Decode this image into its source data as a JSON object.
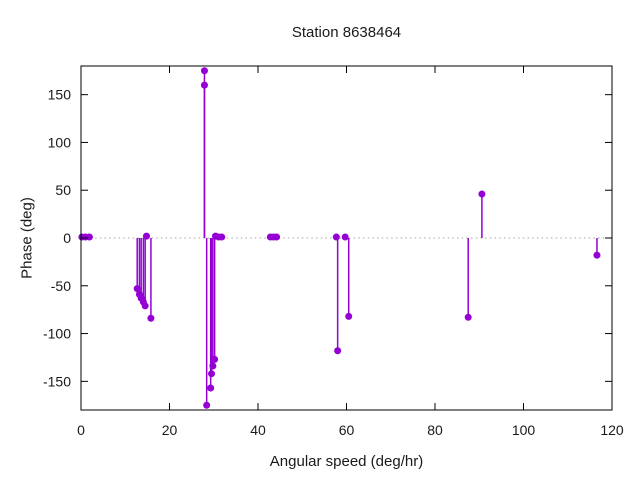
{
  "colors": {
    "accent": "#9400d3",
    "zero_line": "#a6a6a6",
    "border": "#000000",
    "text": "#1a1a1a",
    "background": "#ffffff"
  },
  "chart_data": {
    "type": "scatter",
    "style": "impulses+points",
    "title": "Station 8638464",
    "xlabel": "Angular speed (deg/hr)",
    "ylabel": "Phase (deg)",
    "xlim": [
      0,
      120
    ],
    "ylim": [
      -180,
      180
    ],
    "xticks": [
      0,
      20,
      40,
      60,
      80,
      100,
      120
    ],
    "yticks": [
      -150,
      -100,
      -50,
      0,
      50,
      100,
      150
    ],
    "grid": false,
    "legend": "none",
    "zero_axis": "dotted",
    "points": [
      {
        "x": 0.2,
        "y": 1
      },
      {
        "x": 1.0,
        "y": 1
      },
      {
        "x": 1.9,
        "y": 1
      },
      {
        "x": 12.7,
        "y": -53
      },
      {
        "x": 13.2,
        "y": -59
      },
      {
        "x": 13.6,
        "y": -63
      },
      {
        "x": 14.1,
        "y": -67
      },
      {
        "x": 14.5,
        "y": -71
      },
      {
        "x": 14.8,
        "y": 2
      },
      {
        "x": 15.8,
        "y": -84
      },
      {
        "x": 27.9,
        "y": 175
      },
      {
        "x": 27.9,
        "y": 160
      },
      {
        "x": 28.4,
        "y": -175
      },
      {
        "x": 29.3,
        "y": -157
      },
      {
        "x": 29.5,
        "y": -142
      },
      {
        "x": 29.8,
        "y": -134
      },
      {
        "x": 30.2,
        "y": -127
      },
      {
        "x": 30.4,
        "y": 2
      },
      {
        "x": 31.1,
        "y": 1
      },
      {
        "x": 31.8,
        "y": 1
      },
      {
        "x": 42.8,
        "y": 1
      },
      {
        "x": 43.5,
        "y": 1
      },
      {
        "x": 44.2,
        "y": 1
      },
      {
        "x": 57.7,
        "y": 1
      },
      {
        "x": 58.0,
        "y": -118
      },
      {
        "x": 59.7,
        "y": 1
      },
      {
        "x": 60.5,
        "y": -82
      },
      {
        "x": 87.5,
        "y": -83
      },
      {
        "x": 90.6,
        "y": 46
      },
      {
        "x": 116.6,
        "y": -18
      }
    ]
  }
}
